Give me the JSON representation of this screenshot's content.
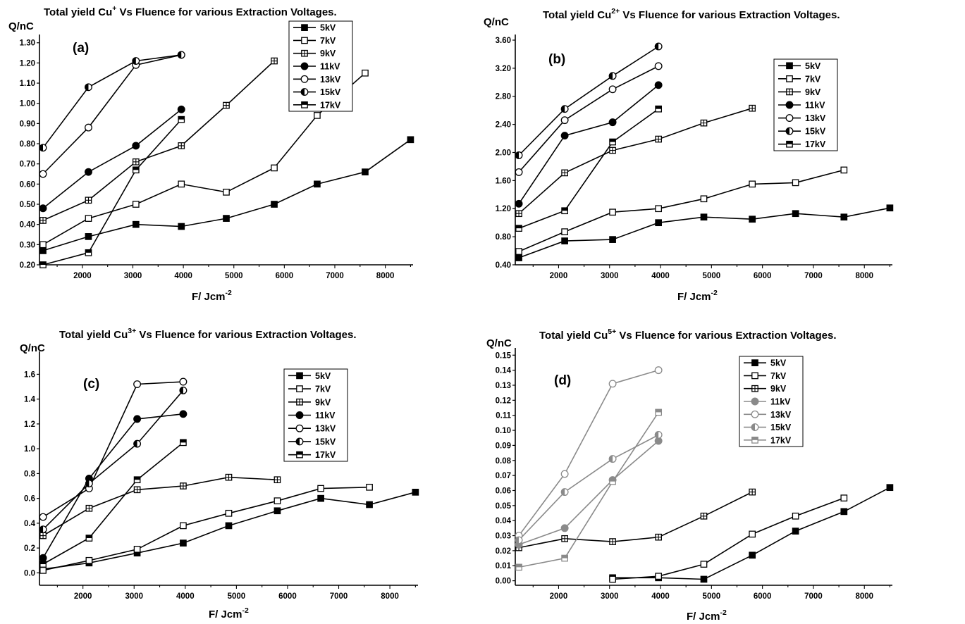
{
  "chart_data": [
    {
      "type": "line",
      "panel_label": "(a)",
      "title": "Total yield Cu",
      "title_sup": "+",
      "title_rest": " Vs Fluence for various Extraction Voltages.",
      "ylabel": "Q/nC",
      "xlabel": "F/ Jcm",
      "xlabel_sup": "-2",
      "xlim": [
        1150,
        8550
      ],
      "ylim": [
        0.2,
        1.32
      ],
      "xticks": [
        2000,
        3000,
        4000,
        5000,
        6000,
        7000,
        8000
      ],
      "yticks": [
        0.2,
        0.3,
        0.4,
        0.5,
        0.6,
        0.7,
        0.8,
        0.9,
        1.0,
        1.1,
        1.2,
        1.3
      ],
      "ytick_labels": [
        "0.20",
        "0.30",
        "0.40",
        "0.50",
        "0.60",
        "0.70",
        "0.80",
        "0.90",
        "1.00",
        "1.10",
        "1.20",
        "1.30"
      ],
      "legend_position": "top-center",
      "series": [
        {
          "name": "5kV",
          "marker": "square-filled",
          "x": [
            1220,
            2120,
            3060,
            3960,
            4850,
            5800,
            6650,
            7600,
            8500
          ],
          "y": [
            0.27,
            0.34,
            0.4,
            0.39,
            0.43,
            0.5,
            0.6,
            0.66,
            0.82
          ]
        },
        {
          "name": "7kV",
          "marker": "square-open",
          "x": [
            1220,
            2120,
            3060,
            3960,
            4850,
            5800,
            6650,
            7600
          ],
          "y": [
            0.3,
            0.43,
            0.5,
            0.6,
            0.56,
            0.68,
            0.94,
            1.15
          ]
        },
        {
          "name": "9kV",
          "marker": "square-cross",
          "x": [
            1220,
            2120,
            3060,
            3960,
            4850,
            5800
          ],
          "y": [
            0.42,
            0.52,
            0.71,
            0.79,
            0.99,
            1.21
          ]
        },
        {
          "name": "11kV",
          "marker": "circle-filled",
          "x": [
            1220,
            2120,
            3060,
            3960
          ],
          "y": [
            0.48,
            0.66,
            0.79,
            0.97
          ]
        },
        {
          "name": "13kV",
          "marker": "circle-open",
          "x": [
            1220,
            2120,
            3060,
            3960
          ],
          "y": [
            0.65,
            0.88,
            1.19,
            1.24
          ]
        },
        {
          "name": "15kV",
          "marker": "circle-half",
          "x": [
            1220,
            2120,
            3060,
            3960
          ],
          "y": [
            0.78,
            1.08,
            1.21,
            1.24
          ]
        },
        {
          "name": "17kV",
          "marker": "square-half",
          "x": [
            1220,
            2120,
            3060,
            3960
          ],
          "y": [
            0.2,
            0.26,
            0.67,
            0.92
          ]
        }
      ]
    },
    {
      "type": "line",
      "panel_label": "(b)",
      "title": "Total yield Cu",
      "title_sup": "2+",
      "title_rest": " Vs Fluence for various Extraction Voltages.",
      "ylabel": "Q/nC",
      "xlabel": "F/ Jcm",
      "xlabel_sup": "-2",
      "xlim": [
        1150,
        8550
      ],
      "ylim": [
        0.4,
        3.62
      ],
      "xticks": [
        2000,
        3000,
        4000,
        5000,
        6000,
        7000,
        8000
      ],
      "yticks": [
        0.4,
        0.8,
        1.2,
        1.6,
        2.0,
        2.4,
        2.8,
        3.2,
        3.6
      ],
      "ytick_labels": [
        "0.40",
        "0.80",
        "1.20",
        "1.60",
        "2.00",
        "2.40",
        "2.80",
        "3.20",
        "3.60"
      ],
      "legend_position": "right",
      "series": [
        {
          "name": "5kV",
          "marker": "square-filled",
          "x": [
            1220,
            2120,
            3060,
            3960,
            4850,
            5800,
            6650,
            7600,
            8500
          ],
          "y": [
            0.5,
            0.74,
            0.76,
            1.0,
            1.08,
            1.05,
            1.13,
            1.08,
            1.21
          ]
        },
        {
          "name": "7kV",
          "marker": "square-open",
          "x": [
            1220,
            2120,
            3060,
            3960,
            4850,
            5800,
            6650,
            7600
          ],
          "y": [
            0.59,
            0.87,
            1.15,
            1.2,
            1.34,
            1.55,
            1.57,
            1.75
          ]
        },
        {
          "name": "9kV",
          "marker": "square-cross",
          "x": [
            1220,
            2120,
            3060,
            3960,
            4850,
            5800
          ],
          "y": [
            1.13,
            1.71,
            2.03,
            2.19,
            2.42,
            2.63
          ]
        },
        {
          "name": "11kV",
          "marker": "circle-filled",
          "x": [
            1220,
            2120,
            3060,
            3960
          ],
          "y": [
            1.27,
            2.24,
            2.43,
            2.96
          ]
        },
        {
          "name": "13kV",
          "marker": "circle-open",
          "x": [
            1220,
            2120,
            3060,
            3960
          ],
          "y": [
            1.72,
            2.46,
            2.9,
            3.23
          ]
        },
        {
          "name": "15kV",
          "marker": "circle-half",
          "x": [
            1220,
            2120,
            3060,
            3960
          ],
          "y": [
            1.96,
            2.62,
            3.09,
            3.51
          ]
        },
        {
          "name": "17kV",
          "marker": "square-half",
          "x": [
            1220,
            2120,
            3060,
            3960
          ],
          "y": [
            0.92,
            1.17,
            2.15,
            2.62
          ]
        }
      ]
    },
    {
      "type": "line",
      "panel_label": "(c)",
      "title": "Total yield Cu",
      "title_sup": "3+",
      "title_rest": " Vs Fluence for various Extraction Voltages.",
      "ylabel": "Q/nC",
      "xlabel": "F/ Jcm",
      "xlabel_sup": "-2",
      "xlim": [
        1150,
        8550
      ],
      "ylim": [
        -0.1,
        1.75
      ],
      "xticks": [
        2000,
        3000,
        4000,
        5000,
        6000,
        7000,
        8000
      ],
      "yticks": [
        0.0,
        0.2,
        0.4,
        0.6,
        0.8,
        1.0,
        1.2,
        1.4,
        1.6
      ],
      "ytick_labels": [
        "0.0",
        "0.2",
        "0.4",
        "0.6",
        "0.8",
        "1.0",
        "1.2",
        "1.4",
        "1.6"
      ],
      "legend_position": "right",
      "series": [
        {
          "name": "5kV",
          "marker": "square-filled",
          "x": [
            1220,
            2120,
            3060,
            3960,
            4850,
            5800,
            6650,
            7600,
            8500
          ],
          "y": [
            0.03,
            0.08,
            0.16,
            0.24,
            0.38,
            0.5,
            0.6,
            0.55,
            0.65
          ]
        },
        {
          "name": "7kV",
          "marker": "square-open",
          "x": [
            1220,
            2120,
            3060,
            3960,
            4850,
            5800,
            6650,
            7600
          ],
          "y": [
            0.02,
            0.1,
            0.19,
            0.38,
            0.48,
            0.58,
            0.68,
            0.69
          ]
        },
        {
          "name": "9kV",
          "marker": "square-cross",
          "x": [
            1220,
            2120,
            3060,
            3960,
            4850,
            5800
          ],
          "y": [
            0.3,
            0.52,
            0.67,
            0.7,
            0.77,
            0.75
          ]
        },
        {
          "name": "11kV",
          "marker": "circle-filled",
          "x": [
            1220,
            2120,
            3060,
            3960
          ],
          "y": [
            0.12,
            0.76,
            1.24,
            1.28
          ]
        },
        {
          "name": "13kV",
          "marker": "circle-open",
          "x": [
            1220,
            2120,
            3060,
            3960
          ],
          "y": [
            0.45,
            0.68,
            1.52,
            1.54
          ]
        },
        {
          "name": "15kV",
          "marker": "circle-half",
          "x": [
            1220,
            2120,
            3060,
            3960
          ],
          "y": [
            0.35,
            0.72,
            1.04,
            1.47
          ]
        },
        {
          "name": "17kV",
          "marker": "square-half",
          "x": [
            1220,
            2120,
            3060,
            3960
          ],
          "y": [
            0.07,
            0.28,
            0.75,
            1.05
          ]
        }
      ]
    },
    {
      "type": "line",
      "panel_label": "(d)",
      "title": "Total yield Cu",
      "title_sup": "5+",
      "title_rest": " Vs Fluence for various Extraction Voltages.",
      "ylabel": "Q/nC",
      "xlabel": "F/ Jcm",
      "xlabel_sup": "-2",
      "xlim": [
        1150,
        8550
      ],
      "ylim": [
        -0.003,
        0.152
      ],
      "xticks": [
        2000,
        3000,
        4000,
        5000,
        6000,
        7000,
        8000
      ],
      "yticks": [
        0.0,
        0.01,
        0.02,
        0.03,
        0.04,
        0.05,
        0.06,
        0.07,
        0.08,
        0.09,
        0.1,
        0.11,
        0.12,
        0.13,
        0.14,
        0.15
      ],
      "ytick_labels": [
        "0.00",
        "0.01",
        "0.02",
        "0.03",
        "0.04",
        "0.05",
        "0.06",
        "0.07",
        "0.08",
        "0.09",
        "0.10",
        "0.11",
        "0.12",
        "0.13",
        "0.14",
        "0.15"
      ],
      "legend_position": "top-center",
      "series": [
        {
          "name": "5kV",
          "marker": "square-filled",
          "x": [
            3060,
            3960,
            4850,
            5800,
            6650,
            7600,
            8500
          ],
          "y": [
            0.002,
            0.002,
            0.001,
            0.017,
            0.033,
            0.046,
            0.062
          ]
        },
        {
          "name": "7kV",
          "marker": "square-open",
          "x": [
            3060,
            3960,
            4850,
            5800,
            6650,
            7600
          ],
          "y": [
            0.001,
            0.003,
            0.011,
            0.031,
            0.043,
            0.055
          ]
        },
        {
          "name": "9kV",
          "marker": "square-cross",
          "x": [
            1220,
            2120,
            3060,
            3960,
            4850,
            5800
          ],
          "y": [
            0.022,
            0.028,
            0.026,
            0.029,
            0.043,
            0.059
          ]
        },
        {
          "name": "11kV",
          "marker": "circle-filled",
          "x": [
            1220,
            2120,
            3060,
            3960
          ],
          "y": [
            0.024,
            0.035,
            0.067,
            0.093
          ]
        },
        {
          "name": "13kV",
          "marker": "circle-open",
          "x": [
            1220,
            2120,
            3060,
            3960
          ],
          "y": [
            0.03,
            0.071,
            0.131,
            0.14
          ]
        },
        {
          "name": "15kV",
          "marker": "circle-half",
          "x": [
            1220,
            2120,
            3060,
            3960
          ],
          "y": [
            0.027,
            0.059,
            0.081,
            0.097
          ]
        },
        {
          "name": "17kV",
          "marker": "square-half",
          "x": [
            1220,
            2120,
            3060,
            3960
          ],
          "y": [
            0.009,
            0.015,
            0.066,
            0.112
          ]
        }
      ]
    }
  ]
}
